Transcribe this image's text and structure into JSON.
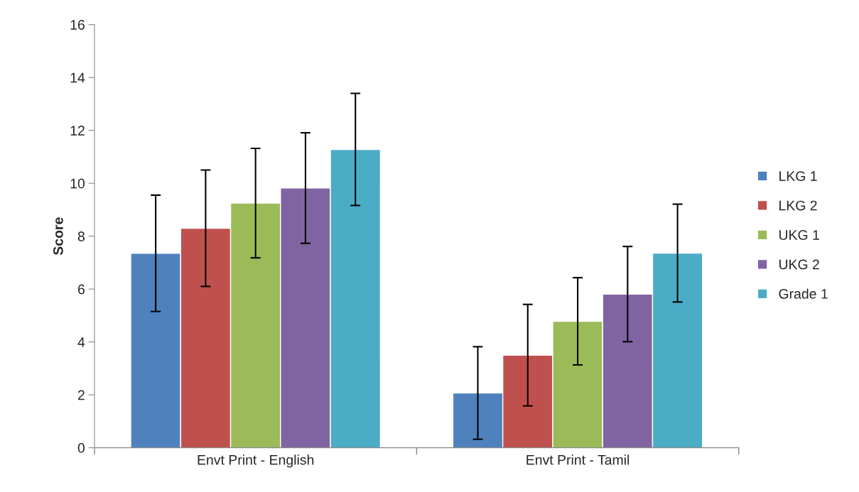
{
  "chart_data": {
    "type": "bar",
    "ylabel": "Score",
    "categories": [
      "Envt Print - English",
      "Envt Print - Tamil"
    ],
    "series": [
      {
        "name": "LKG 1",
        "color": "#4f81bd",
        "values": [
          7.35,
          2.07
        ],
        "errors": [
          2.2,
          1.75
        ]
      },
      {
        "name": "LKG 2",
        "color": "#c0504d",
        "values": [
          8.3,
          3.5
        ],
        "errors": [
          2.2,
          1.92
        ]
      },
      {
        "name": "UKG 1",
        "color": "#9bbb59",
        "values": [
          9.25,
          4.78
        ],
        "errors": [
          2.07,
          1.65
        ]
      },
      {
        "name": "UKG 2",
        "color": "#8064a2",
        "values": [
          9.82,
          5.81
        ],
        "errors": [
          2.09,
          1.8
        ]
      },
      {
        "name": "Grade 1",
        "color": "#4bacc6",
        "values": [
          11.28,
          7.36
        ],
        "errors": [
          2.12,
          1.85
        ]
      }
    ],
    "ylim": [
      0,
      16
    ],
    "yticks": [
      0,
      2,
      4,
      6,
      8,
      10,
      12,
      14,
      16
    ],
    "grid": false,
    "legend": "right"
  }
}
